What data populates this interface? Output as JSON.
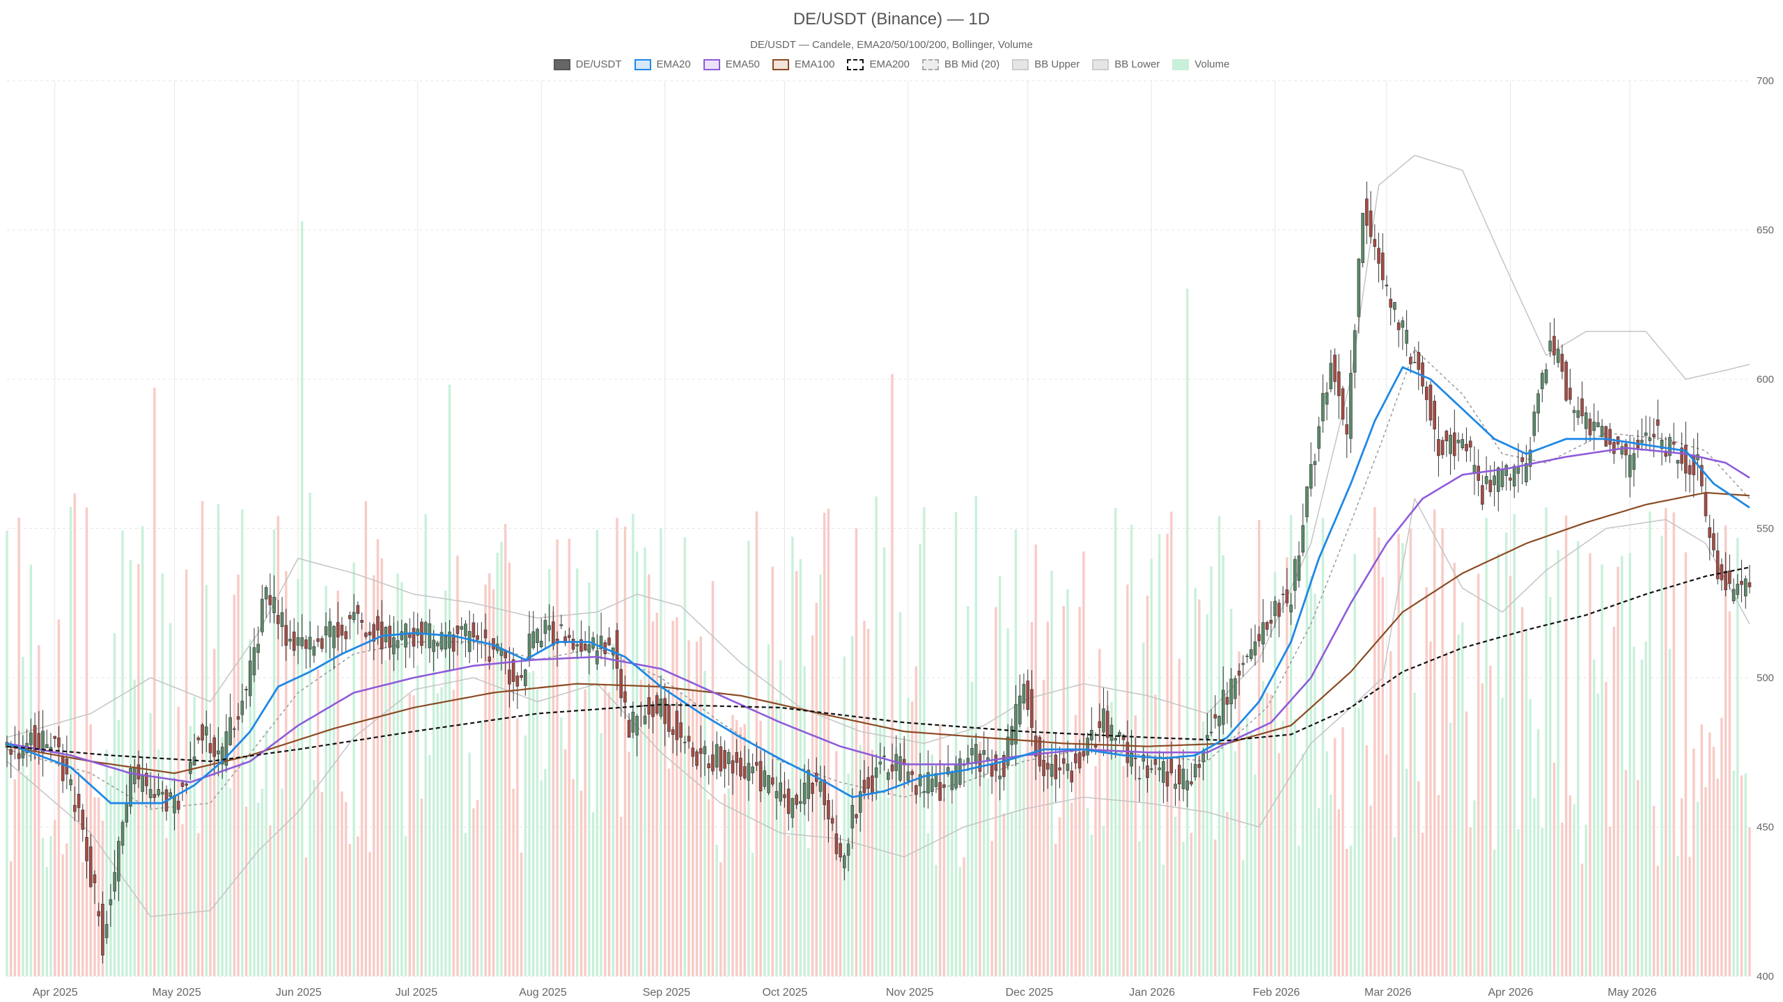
{
  "chart_data": {
    "type": "candlestick",
    "title": "DE/USDT (Binance) — 1D",
    "subtitle": "DE/USDT — Candele, EMA20/50/100/200, Bollinger, Volume",
    "legend": [
      {
        "label": "DE/USDT",
        "fill": "#666666",
        "stroke": "#555555",
        "dash": false
      },
      {
        "label": "EMA20",
        "fill": "#d6e8fb",
        "stroke": "#1e88e5",
        "dash": false
      },
      {
        "label": "EMA50",
        "fill": "#ece3fb",
        "stroke": "#8e5bd9",
        "dash": false
      },
      {
        "label": "EMA100",
        "fill": "#f3e4da",
        "stroke": "#8b4a24",
        "dash": false
      },
      {
        "label": "EMA200",
        "fill": "#ffffff",
        "stroke": "#111111",
        "dash": true
      },
      {
        "label": "BB Mid (20)",
        "fill": "#eeeeee",
        "stroke": "#aaaaaa",
        "dash": true
      },
      {
        "label": "BB Upper",
        "fill": "#e6e6e6",
        "stroke": "#cccccc",
        "dash": false
      },
      {
        "label": "BB Lower",
        "fill": "#e6e6e6",
        "stroke": "#cccccc",
        "dash": false
      },
      {
        "label": "Volume",
        "fill": "#c9f0da",
        "stroke": "#c9f0da",
        "dash": false
      }
    ],
    "y_ticks": [
      "700",
      "650",
      "600",
      "550",
      "500",
      "450",
      "400"
    ],
    "ylim": [
      400,
      700
    ],
    "x_ticks": [
      {
        "label": "Apr 2025",
        "date": "2025-04-01"
      },
      {
        "label": "May 2025",
        "date": "2025-05-01"
      },
      {
        "label": "Jun 2025",
        "date": "2025-06-01"
      },
      {
        "label": "Jul 2025",
        "date": "2025-07-01"
      },
      {
        "label": "Aug 2025",
        "date": "2025-08-01"
      },
      {
        "label": "Sep 2025",
        "date": "2025-09-01"
      },
      {
        "label": "Oct 2025",
        "date": "2025-10-01"
      },
      {
        "label": "Nov 2025",
        "date": "2025-11-01"
      },
      {
        "label": "Dec 2025",
        "date": "2025-12-01"
      },
      {
        "label": "Jan 2026",
        "date": "2026-01-01"
      },
      {
        "label": "Feb 2026",
        "date": "2026-02-01"
      },
      {
        "label": "Mar 2026",
        "date": "2026-03-01"
      },
      {
        "label": "Apr 2026",
        "date": "2026-04-01"
      },
      {
        "label": "May 2026",
        "date": "2026-05-01"
      }
    ],
    "xlim": [
      "2025-03-20",
      "2026-05-31"
    ],
    "grid": true,
    "legend_position": "top-center",
    "colors": {
      "up_candle": "#5a8a68",
      "down_candle": "#a64b43",
      "ema20": "#1e88e5",
      "ema50": "#8e5bd9",
      "ema100": "#8b4a24",
      "ema200": "#111111",
      "bb_mid": "#999999",
      "bb_band": "#c4c4c4",
      "volume_up": "#c9f0da",
      "volume_down": "#f8cbc6",
      "grid": "#e6e6e6"
    },
    "close_keypoints": [
      [
        "2025-03-20",
        476
      ],
      [
        "2025-03-27",
        480
      ],
      [
        "2025-04-02",
        474
      ],
      [
        "2025-04-08",
        448
      ],
      [
        "2025-04-13",
        412
      ],
      [
        "2025-04-20",
        468
      ],
      [
        "2025-04-27",
        458
      ],
      [
        "2025-05-02",
        460
      ],
      [
        "2025-05-07",
        482
      ],
      [
        "2025-05-13",
        474
      ],
      [
        "2025-05-19",
        498
      ],
      [
        "2025-05-24",
        528
      ],
      [
        "2025-05-31",
        510
      ],
      [
        "2025-06-07",
        512
      ],
      [
        "2025-06-15",
        520
      ],
      [
        "2025-06-24",
        512
      ],
      [
        "2025-07-01",
        515
      ],
      [
        "2025-07-08",
        512
      ],
      [
        "2025-07-16",
        514
      ],
      [
        "2025-07-22",
        506
      ],
      [
        "2025-07-26",
        498
      ],
      [
        "2025-07-30",
        514
      ],
      [
        "2025-08-05",
        515
      ],
      [
        "2025-08-12",
        508
      ],
      [
        "2025-08-19",
        512
      ],
      [
        "2025-08-23",
        482
      ],
      [
        "2025-08-27",
        492
      ],
      [
        "2025-08-31",
        490
      ],
      [
        "2025-09-08",
        474
      ],
      [
        "2025-09-17",
        472
      ],
      [
        "2025-09-26",
        466
      ],
      [
        "2025-10-02",
        458
      ],
      [
        "2025-10-10",
        468
      ],
      [
        "2025-10-15",
        440
      ],
      [
        "2025-10-20",
        462
      ],
      [
        "2025-10-27",
        472
      ],
      [
        "2025-11-03",
        465
      ],
      [
        "2025-11-09",
        463
      ],
      [
        "2025-11-17",
        474
      ],
      [
        "2025-11-25",
        470
      ],
      [
        "2025-11-30",
        498
      ],
      [
        "2025-12-04",
        472
      ],
      [
        "2025-12-12",
        470
      ],
      [
        "2025-12-20",
        485
      ],
      [
        "2025-12-28",
        470
      ],
      [
        "2026-01-05",
        468
      ],
      [
        "2026-01-10",
        464
      ],
      [
        "2026-01-15",
        480
      ],
      [
        "2026-01-22",
        500
      ],
      [
        "2026-01-30",
        520
      ],
      [
        "2026-02-05",
        528
      ],
      [
        "2026-02-10",
        568
      ],
      [
        "2026-02-15",
        608
      ],
      [
        "2026-02-19",
        582
      ],
      [
        "2026-02-23",
        660
      ],
      [
        "2026-02-27",
        640
      ],
      [
        "2026-03-05",
        615
      ],
      [
        "2026-03-10",
        600
      ],
      [
        "2026-03-14",
        578
      ],
      [
        "2026-03-20",
        580
      ],
      [
        "2026-03-25",
        562
      ],
      [
        "2026-03-30",
        568
      ],
      [
        "2026-04-05",
        570
      ],
      [
        "2026-04-11",
        615
      ],
      [
        "2026-04-16",
        592
      ],
      [
        "2026-04-25",
        580
      ],
      [
        "2026-04-30",
        572
      ],
      [
        "2026-05-07",
        583
      ],
      [
        "2026-05-13",
        574
      ],
      [
        "2026-05-18",
        570
      ],
      [
        "2026-05-22",
        538
      ],
      [
        "2026-05-27",
        528
      ],
      [
        "2026-05-31",
        535
      ]
    ],
    "ema20": [
      [
        "2025-03-20",
        478
      ],
      [
        "2025-04-05",
        470
      ],
      [
        "2025-04-15",
        458
      ],
      [
        "2025-04-28",
        458
      ],
      [
        "2025-05-06",
        464
      ],
      [
        "2025-05-13",
        472
      ],
      [
        "2025-05-20",
        482
      ],
      [
        "2025-05-27",
        497
      ],
      [
        "2025-06-04",
        502
      ],
      [
        "2025-06-12",
        508
      ],
      [
        "2025-06-22",
        514
      ],
      [
        "2025-06-30",
        515
      ],
      [
        "2025-07-10",
        514
      ],
      [
        "2025-07-20",
        511
      ],
      [
        "2025-07-28",
        506
      ],
      [
        "2025-08-05",
        512
      ],
      [
        "2025-08-13",
        512
      ],
      [
        "2025-08-22",
        507
      ],
      [
        "2025-08-31",
        497
      ],
      [
        "2025-09-10",
        488
      ],
      [
        "2025-09-20",
        480
      ],
      [
        "2025-10-01",
        472
      ],
      [
        "2025-10-10",
        466
      ],
      [
        "2025-10-18",
        460
      ],
      [
        "2025-10-26",
        462
      ],
      [
        "2025-11-05",
        467
      ],
      [
        "2025-11-15",
        469
      ],
      [
        "2025-11-25",
        472
      ],
      [
        "2025-12-05",
        476
      ],
      [
        "2025-12-15",
        476
      ],
      [
        "2025-12-25",
        474
      ],
      [
        "2026-01-04",
        473
      ],
      [
        "2026-01-12",
        474
      ],
      [
        "2026-01-20",
        480
      ],
      [
        "2026-01-28",
        492
      ],
      [
        "2026-02-05",
        512
      ],
      [
        "2026-02-12",
        540
      ],
      [
        "2026-02-20",
        565
      ],
      [
        "2026-02-26",
        586
      ],
      [
        "2026-03-05",
        604
      ],
      [
        "2026-03-12",
        600
      ],
      [
        "2026-03-20",
        590
      ],
      [
        "2026-03-28",
        580
      ],
      [
        "2026-04-05",
        575
      ],
      [
        "2026-04-15",
        580
      ],
      [
        "2026-04-25",
        580
      ],
      [
        "2026-05-05",
        578
      ],
      [
        "2026-05-15",
        576
      ],
      [
        "2026-05-22",
        565
      ],
      [
        "2026-05-31",
        557
      ]
    ],
    "ema50": [
      [
        "2025-03-20",
        478
      ],
      [
        "2025-04-05",
        474
      ],
      [
        "2025-04-20",
        468
      ],
      [
        "2025-05-05",
        465
      ],
      [
        "2025-05-20",
        472
      ],
      [
        "2025-06-01",
        484
      ],
      [
        "2025-06-15",
        495
      ],
      [
        "2025-06-30",
        500
      ],
      [
        "2025-07-15",
        504
      ],
      [
        "2025-07-30",
        506
      ],
      [
        "2025-08-15",
        507
      ],
      [
        "2025-08-31",
        503
      ],
      [
        "2025-09-15",
        494
      ],
      [
        "2025-09-30",
        485
      ],
      [
        "2025-10-15",
        477
      ],
      [
        "2025-10-31",
        471
      ],
      [
        "2025-11-15",
        471
      ],
      [
        "2025-11-30",
        474
      ],
      [
        "2025-12-15",
        476
      ],
      [
        "2025-12-31",
        475
      ],
      [
        "2026-01-15",
        475
      ],
      [
        "2026-01-31",
        485
      ],
      [
        "2026-02-10",
        500
      ],
      [
        "2026-02-20",
        525
      ],
      [
        "2026-03-01",
        545
      ],
      [
        "2026-03-10",
        560
      ],
      [
        "2026-03-20",
        568
      ],
      [
        "2026-03-31",
        570
      ],
      [
        "2026-04-15",
        574
      ],
      [
        "2026-04-30",
        577
      ],
      [
        "2026-05-15",
        575
      ],
      [
        "2026-05-25",
        572
      ],
      [
        "2026-05-31",
        567
      ]
    ],
    "ema100": [
      [
        "2025-03-20",
        477
      ],
      [
        "2025-04-10",
        472
      ],
      [
        "2025-05-01",
        468
      ],
      [
        "2025-05-20",
        474
      ],
      [
        "2025-06-10",
        483
      ],
      [
        "2025-06-30",
        490
      ],
      [
        "2025-07-20",
        495
      ],
      [
        "2025-08-10",
        498
      ],
      [
        "2025-08-31",
        497
      ],
      [
        "2025-09-20",
        494
      ],
      [
        "2025-10-10",
        488
      ],
      [
        "2025-10-31",
        482
      ],
      [
        "2025-11-20",
        480
      ],
      [
        "2025-12-10",
        478
      ],
      [
        "2025-12-31",
        477
      ],
      [
        "2026-01-20",
        478
      ],
      [
        "2026-02-05",
        484
      ],
      [
        "2026-02-20",
        502
      ],
      [
        "2026-03-05",
        522
      ],
      [
        "2026-03-20",
        535
      ],
      [
        "2026-04-05",
        545
      ],
      [
        "2026-04-20",
        552
      ],
      [
        "2026-05-05",
        558
      ],
      [
        "2026-05-20",
        562
      ],
      [
        "2026-05-31",
        561
      ]
    ],
    "ema200": [
      [
        "2025-03-20",
        477
      ],
      [
        "2025-04-15",
        474
      ],
      [
        "2025-05-10",
        472
      ],
      [
        "2025-06-01",
        476
      ],
      [
        "2025-06-30",
        482
      ],
      [
        "2025-07-31",
        488
      ],
      [
        "2025-08-31",
        491
      ],
      [
        "2025-09-30",
        490
      ],
      [
        "2025-10-31",
        485
      ],
      [
        "2025-11-30",
        482
      ],
      [
        "2025-12-31",
        480
      ],
      [
        "2026-01-20",
        479
      ],
      [
        "2026-02-05",
        481
      ],
      [
        "2026-02-20",
        490
      ],
      [
        "2026-03-05",
        502
      ],
      [
        "2026-03-20",
        510
      ],
      [
        "2026-04-05",
        516
      ],
      [
        "2026-04-20",
        521
      ],
      [
        "2026-05-05",
        528
      ],
      [
        "2026-05-20",
        534
      ],
      [
        "2026-05-31",
        537
      ]
    ],
    "bb_upper": [
      [
        "2025-03-20",
        480
      ],
      [
        "2025-04-10",
        488
      ],
      [
        "2025-04-25",
        500
      ],
      [
        "2025-05-10",
        492
      ],
      [
        "2025-05-22",
        515
      ],
      [
        "2025-06-01",
        540
      ],
      [
        "2025-06-15",
        535
      ],
      [
        "2025-06-30",
        528
      ],
      [
        "2025-07-15",
        525
      ],
      [
        "2025-07-31",
        520
      ],
      [
        "2025-08-15",
        522
      ],
      [
        "2025-08-25",
        528
      ],
      [
        "2025-09-05",
        524
      ],
      [
        "2025-09-20",
        505
      ],
      [
        "2025-10-05",
        490
      ],
      [
        "2025-10-20",
        482
      ],
      [
        "2025-11-05",
        478
      ],
      [
        "2025-11-20",
        484
      ],
      [
        "2025-12-01",
        493
      ],
      [
        "2025-12-15",
        498
      ],
      [
        "2025-12-31",
        494
      ],
      [
        "2026-01-15",
        488
      ],
      [
        "2026-01-28",
        506
      ],
      [
        "2026-02-10",
        545
      ],
      [
        "2026-02-20",
        600
      ],
      [
        "2026-02-27",
        665
      ],
      [
        "2026-03-08",
        675
      ],
      [
        "2026-03-20",
        670
      ],
      [
        "2026-03-30",
        640
      ],
      [
        "2026-04-10",
        608
      ],
      [
        "2026-04-20",
        616
      ],
      [
        "2026-05-05",
        616
      ],
      [
        "2026-05-15",
        600
      ],
      [
        "2026-05-25",
        603
      ],
      [
        "2026-05-31",
        605
      ]
    ],
    "bb_mid": [
      [
        "2025-03-20",
        476
      ],
      [
        "2025-04-10",
        468
      ],
      [
        "2025-04-25",
        456
      ],
      [
        "2025-05-10",
        458
      ],
      [
        "2025-05-22",
        478
      ],
      [
        "2025-06-01",
        495
      ],
      [
        "2025-06-15",
        508
      ],
      [
        "2025-06-30",
        512
      ],
      [
        "2025-07-15",
        512
      ],
      [
        "2025-07-31",
        506
      ],
      [
        "2025-08-15",
        510
      ],
      [
        "2025-08-31",
        500
      ],
      [
        "2025-09-15",
        485
      ],
      [
        "2025-09-30",
        472
      ],
      [
        "2025-10-15",
        465
      ],
      [
        "2025-10-31",
        460
      ],
      [
        "2025-11-15",
        465
      ],
      [
        "2025-11-30",
        472
      ],
      [
        "2025-12-15",
        476
      ],
      [
        "2025-12-31",
        474
      ],
      [
        "2026-01-15",
        472
      ],
      [
        "2026-01-30",
        490
      ],
      [
        "2026-02-10",
        518
      ],
      [
        "2026-02-20",
        552
      ],
      [
        "2026-02-28",
        580
      ],
      [
        "2026-03-08",
        610
      ],
      [
        "2026-03-20",
        595
      ],
      [
        "2026-03-30",
        575
      ],
      [
        "2026-04-10",
        572
      ],
      [
        "2026-04-25",
        582
      ],
      [
        "2026-05-10",
        580
      ],
      [
        "2026-05-20",
        576
      ],
      [
        "2026-05-31",
        560
      ]
    ],
    "bb_lower": [
      [
        "2025-03-20",
        472
      ],
      [
        "2025-04-10",
        448
      ],
      [
        "2025-04-25",
        420
      ],
      [
        "2025-05-10",
        422
      ],
      [
        "2025-05-22",
        442
      ],
      [
        "2025-06-01",
        455
      ],
      [
        "2025-06-15",
        480
      ],
      [
        "2025-06-30",
        496
      ],
      [
        "2025-07-15",
        500
      ],
      [
        "2025-07-31",
        492
      ],
      [
        "2025-08-15",
        498
      ],
      [
        "2025-08-31",
        475
      ],
      [
        "2025-09-15",
        458
      ],
      [
        "2025-09-30",
        448
      ],
      [
        "2025-10-15",
        446
      ],
      [
        "2025-10-31",
        440
      ],
      [
        "2025-11-15",
        450
      ],
      [
        "2025-11-30",
        456
      ],
      [
        "2025-12-15",
        460
      ],
      [
        "2025-12-31",
        458
      ],
      [
        "2026-01-15",
        455
      ],
      [
        "2026-01-28",
        450
      ],
      [
        "2026-02-10",
        478
      ],
      [
        "2026-02-20",
        490
      ],
      [
        "2026-02-28",
        500
      ],
      [
        "2026-03-08",
        560
      ],
      [
        "2026-03-20",
        530
      ],
      [
        "2026-03-30",
        522
      ],
      [
        "2026-04-10",
        536
      ],
      [
        "2026-04-25",
        550
      ],
      [
        "2026-05-10",
        553
      ],
      [
        "2026-05-20",
        545
      ],
      [
        "2026-05-31",
        518
      ]
    ],
    "volume_up_pct": 0.31
  }
}
